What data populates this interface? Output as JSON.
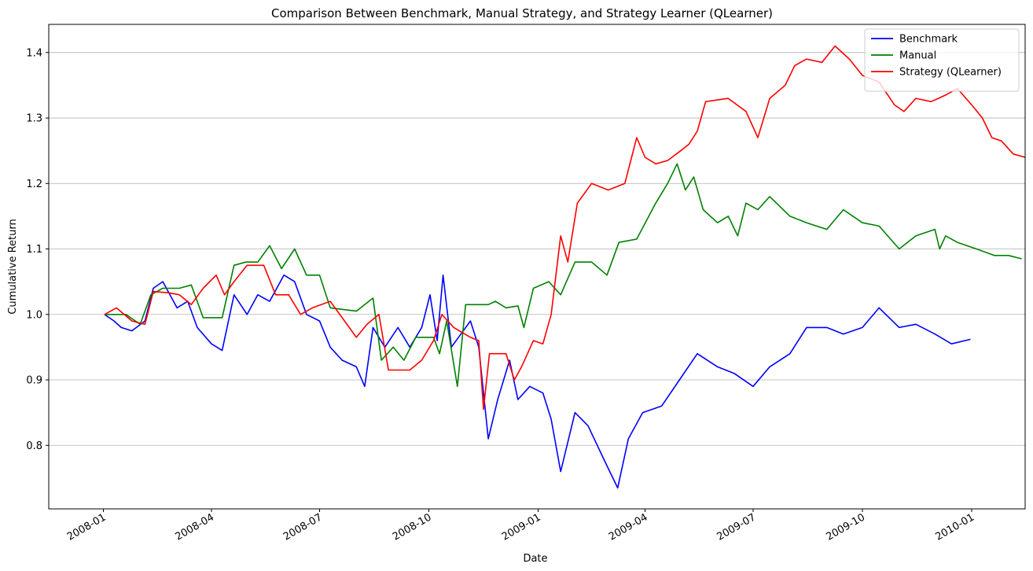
{
  "chart_data": {
    "type": "line",
    "title": "Comparison Between Benchmark, Manual Strategy, and Strategy Learner (QLearner)",
    "xlabel": "Date",
    "ylabel": "Cumulative Return",
    "x_ticks": [
      "2008-01",
      "2008-04",
      "2008-07",
      "2008-10",
      "2009-01",
      "2009-04",
      "2009-07",
      "2009-10",
      "2010-01"
    ],
    "y_ticks": [
      "0.8",
      "0.9",
      "1.0",
      "1.1",
      "1.2",
      "1.3",
      "1.4"
    ],
    "xlim": [
      "2007-11-16",
      "2010-02-15"
    ],
    "ylim": [
      0.703,
      1.443
    ],
    "grid": "y-major",
    "legend_position": "top-right",
    "series": [
      {
        "name": "Benchmark",
        "color": "#0000ff",
        "points": [
          [
            "2008-01-02",
            1.0
          ],
          [
            "2008-01-10",
            0.99
          ],
          [
            "2008-01-16",
            0.98
          ],
          [
            "2008-01-25",
            0.975
          ],
          [
            "2008-02-05",
            0.99
          ],
          [
            "2008-02-12",
            1.04
          ],
          [
            "2008-02-20",
            1.05
          ],
          [
            "2008-03-03",
            1.01
          ],
          [
            "2008-03-12",
            1.02
          ],
          [
            "2008-03-20",
            0.98
          ],
          [
            "2008-04-01",
            0.955
          ],
          [
            "2008-04-10",
            0.945
          ],
          [
            "2008-04-20",
            1.03
          ],
          [
            "2008-05-01",
            1.0
          ],
          [
            "2008-05-10",
            1.03
          ],
          [
            "2008-05-20",
            1.02
          ],
          [
            "2008-06-01",
            1.06
          ],
          [
            "2008-06-10",
            1.05
          ],
          [
            "2008-06-20",
            1.0
          ],
          [
            "2008-07-01",
            0.99
          ],
          [
            "2008-07-10",
            0.95
          ],
          [
            "2008-07-20",
            0.93
          ],
          [
            "2008-08-01",
            0.92
          ],
          [
            "2008-08-08",
            0.89
          ],
          [
            "2008-08-15",
            0.98
          ],
          [
            "2008-08-25",
            0.95
          ],
          [
            "2008-09-05",
            0.98
          ],
          [
            "2008-09-15",
            0.95
          ],
          [
            "2008-09-25",
            0.98
          ],
          [
            "2008-10-02",
            1.03
          ],
          [
            "2008-10-08",
            0.96
          ],
          [
            "2008-10-13",
            1.06
          ],
          [
            "2008-10-20",
            0.95
          ],
          [
            "2008-10-28",
            0.97
          ],
          [
            "2008-11-05",
            0.99
          ],
          [
            "2008-11-12",
            0.95
          ],
          [
            "2008-11-20",
            0.81
          ],
          [
            "2008-11-28",
            0.87
          ],
          [
            "2008-12-08",
            0.93
          ],
          [
            "2008-12-15",
            0.87
          ],
          [
            "2008-12-25",
            0.89
          ],
          [
            "2009-01-05",
            0.88
          ],
          [
            "2009-01-12",
            0.84
          ],
          [
            "2009-01-20",
            0.76
          ],
          [
            "2009-02-01",
            0.85
          ],
          [
            "2009-02-12",
            0.83
          ],
          [
            "2009-02-25",
            0.78
          ],
          [
            "2009-03-09",
            0.735
          ],
          [
            "2009-03-18",
            0.81
          ],
          [
            "2009-03-30",
            0.85
          ],
          [
            "2009-04-15",
            0.86
          ],
          [
            "2009-04-30",
            0.9
          ],
          [
            "2009-05-15",
            0.94
          ],
          [
            "2009-06-01",
            0.92
          ],
          [
            "2009-06-15",
            0.91
          ],
          [
            "2009-07-01",
            0.89
          ],
          [
            "2009-07-15",
            0.92
          ],
          [
            "2009-08-01",
            0.94
          ],
          [
            "2009-08-15",
            0.98
          ],
          [
            "2009-09-01",
            0.98
          ],
          [
            "2009-09-15",
            0.97
          ],
          [
            "2009-10-01",
            0.98
          ],
          [
            "2009-10-15",
            1.01
          ],
          [
            "2009-11-01",
            0.98
          ],
          [
            "2009-11-15",
            0.985
          ],
          [
            "2009-12-01",
            0.97
          ],
          [
            "2009-12-15",
            0.955
          ],
          [
            "2009-12-31",
            0.962
          ]
        ]
      },
      {
        "name": "Manual",
        "color": "#008000",
        "points": [
          [
            "2008-01-02",
            1.0
          ],
          [
            "2008-01-20",
            1.0
          ],
          [
            "2008-02-01",
            0.985
          ],
          [
            "2008-02-10",
            1.03
          ],
          [
            "2008-02-20",
            1.04
          ],
          [
            "2008-03-05",
            1.04
          ],
          [
            "2008-03-15",
            1.045
          ],
          [
            "2008-03-25",
            0.995
          ],
          [
            "2008-04-10",
            0.995
          ],
          [
            "2008-04-20",
            1.075
          ],
          [
            "2008-04-30",
            1.08
          ],
          [
            "2008-05-10",
            1.08
          ],
          [
            "2008-05-20",
            1.105
          ],
          [
            "2008-05-30",
            1.07
          ],
          [
            "2008-06-10",
            1.1
          ],
          [
            "2008-06-20",
            1.06
          ],
          [
            "2008-07-01",
            1.06
          ],
          [
            "2008-07-10",
            1.01
          ],
          [
            "2008-08-01",
            1.005
          ],
          [
            "2008-08-15",
            1.025
          ],
          [
            "2008-08-22",
            0.93
          ],
          [
            "2008-09-01",
            0.95
          ],
          [
            "2008-09-10",
            0.93
          ],
          [
            "2008-09-20",
            0.965
          ],
          [
            "2008-10-05",
            0.965
          ],
          [
            "2008-10-10",
            0.94
          ],
          [
            "2008-10-16",
            0.99
          ],
          [
            "2008-10-25",
            0.89
          ],
          [
            "2008-11-01",
            1.015
          ],
          [
            "2008-11-20",
            1.015
          ],
          [
            "2008-11-26",
            1.02
          ],
          [
            "2008-12-05",
            1.01
          ],
          [
            "2008-12-15",
            1.013
          ],
          [
            "2008-12-20",
            0.98
          ],
          [
            "2008-12-28",
            1.04
          ],
          [
            "2009-01-10",
            1.05
          ],
          [
            "2009-01-20",
            1.03
          ],
          [
            "2009-02-01",
            1.08
          ],
          [
            "2009-02-15",
            1.08
          ],
          [
            "2009-02-28",
            1.06
          ],
          [
            "2009-03-10",
            1.11
          ],
          [
            "2009-03-25",
            1.115
          ],
          [
            "2009-04-10",
            1.17
          ],
          [
            "2009-04-20",
            1.2
          ],
          [
            "2009-04-28",
            1.23
          ],
          [
            "2009-05-05",
            1.19
          ],
          [
            "2009-05-12",
            1.21
          ],
          [
            "2009-05-20",
            1.16
          ],
          [
            "2009-06-01",
            1.14
          ],
          [
            "2009-06-10",
            1.15
          ],
          [
            "2009-06-18",
            1.12
          ],
          [
            "2009-06-25",
            1.17
          ],
          [
            "2009-07-05",
            1.16
          ],
          [
            "2009-07-15",
            1.18
          ],
          [
            "2009-08-01",
            1.15
          ],
          [
            "2009-08-15",
            1.14
          ],
          [
            "2009-09-01",
            1.13
          ],
          [
            "2009-09-15",
            1.16
          ],
          [
            "2009-10-01",
            1.14
          ],
          [
            "2009-10-15",
            1.135
          ],
          [
            "2009-11-01",
            1.1
          ],
          [
            "2009-11-15",
            1.12
          ],
          [
            "2009-12-01",
            1.13
          ],
          [
            "2009-12-05",
            1.1
          ],
          [
            "2009-12-10",
            1.12
          ],
          [
            "2009-12-20",
            1.11
          ],
          [
            "2010-01-05",
            1.1
          ],
          [
            "2010-01-20",
            1.09
          ],
          [
            "2010-02-01",
            1.09
          ],
          [
            "2010-02-12",
            1.085
          ]
        ]
      },
      {
        "name": "Strategy (QLearner)",
        "color": "#ff0000",
        "points": [
          [
            "2008-01-02",
            1.0
          ],
          [
            "2008-01-12",
            1.01
          ],
          [
            "2008-01-25",
            0.99
          ],
          [
            "2008-02-05",
            0.985
          ],
          [
            "2008-02-12",
            1.035
          ],
          [
            "2008-02-25",
            1.033
          ],
          [
            "2008-03-05",
            1.03
          ],
          [
            "2008-03-15",
            1.015
          ],
          [
            "2008-03-25",
            1.04
          ],
          [
            "2008-04-05",
            1.06
          ],
          [
            "2008-04-12",
            1.03
          ],
          [
            "2008-04-20",
            1.05
          ],
          [
            "2008-05-01",
            1.075
          ],
          [
            "2008-05-15",
            1.075
          ],
          [
            "2008-05-25",
            1.03
          ],
          [
            "2008-06-05",
            1.03
          ],
          [
            "2008-06-15",
            1.0
          ],
          [
            "2008-06-25",
            1.01
          ],
          [
            "2008-07-10",
            1.02
          ],
          [
            "2008-07-20",
            0.995
          ],
          [
            "2008-08-01",
            0.965
          ],
          [
            "2008-08-10",
            0.985
          ],
          [
            "2008-08-20",
            1.0
          ],
          [
            "2008-08-28",
            0.915
          ],
          [
            "2008-09-15",
            0.915
          ],
          [
            "2008-09-25",
            0.93
          ],
          [
            "2008-10-05",
            0.96
          ],
          [
            "2008-10-12",
            1.0
          ],
          [
            "2008-10-22",
            0.98
          ],
          [
            "2008-11-05",
            0.965
          ],
          [
            "2008-11-12",
            0.96
          ],
          [
            "2008-11-16",
            0.855
          ],
          [
            "2008-11-21",
            0.94
          ],
          [
            "2008-12-05",
            0.94
          ],
          [
            "2008-12-12",
            0.9
          ],
          [
            "2008-12-18",
            0.92
          ],
          [
            "2008-12-28",
            0.96
          ],
          [
            "2009-01-05",
            0.955
          ],
          [
            "2009-01-12",
            1.0
          ],
          [
            "2009-01-20",
            1.12
          ],
          [
            "2009-01-26",
            1.08
          ],
          [
            "2009-02-03",
            1.17
          ],
          [
            "2009-02-15",
            1.2
          ],
          [
            "2009-03-01",
            1.19
          ],
          [
            "2009-03-15",
            1.2
          ],
          [
            "2009-03-25",
            1.27
          ],
          [
            "2009-04-01",
            1.24
          ],
          [
            "2009-04-10",
            1.23
          ],
          [
            "2009-04-20",
            1.235
          ],
          [
            "2009-05-01",
            1.25
          ],
          [
            "2009-05-08",
            1.26
          ],
          [
            "2009-05-15",
            1.28
          ],
          [
            "2009-05-22",
            1.325
          ],
          [
            "2009-06-10",
            1.33
          ],
          [
            "2009-06-25",
            1.31
          ],
          [
            "2009-07-05",
            1.27
          ],
          [
            "2009-07-15",
            1.33
          ],
          [
            "2009-07-28",
            1.35
          ],
          [
            "2009-08-05",
            1.38
          ],
          [
            "2009-08-15",
            1.39
          ],
          [
            "2009-08-28",
            1.385
          ],
          [
            "2009-09-08",
            1.41
          ],
          [
            "2009-09-20",
            1.39
          ],
          [
            "2009-10-01",
            1.365
          ],
          [
            "2009-10-15",
            1.355
          ],
          [
            "2009-10-28",
            1.32
          ],
          [
            "2009-11-05",
            1.31
          ],
          [
            "2009-11-15",
            1.33
          ],
          [
            "2009-11-28",
            1.325
          ],
          [
            "2009-12-10",
            1.335
          ],
          [
            "2009-12-20",
            1.345
          ],
          [
            "2010-01-01",
            1.32
          ],
          [
            "2010-01-10",
            1.3
          ],
          [
            "2010-01-18",
            1.27
          ],
          [
            "2010-01-26",
            1.265
          ],
          [
            "2010-02-05",
            1.245
          ],
          [
            "2010-02-15",
            1.24
          ]
        ]
      }
    ]
  }
}
